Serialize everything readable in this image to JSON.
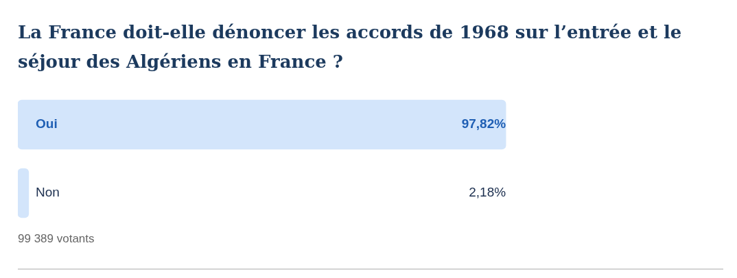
{
  "chart_data": {
    "type": "bar",
    "orientation": "horizontal",
    "title": "La France doit-elle dénoncer les accords de 1968 sur l’entrée et le séjour des Algériens en France ?",
    "categories": [
      "Oui",
      "Non"
    ],
    "values": [
      97.82,
      2.18
    ],
    "colors": [
      "#d3e5fb",
      "#d3e5fb"
    ],
    "value_labels": [
      "97,82%",
      "2,18%"
    ],
    "annotations": [
      "99 389 votants"
    ]
  }
}
